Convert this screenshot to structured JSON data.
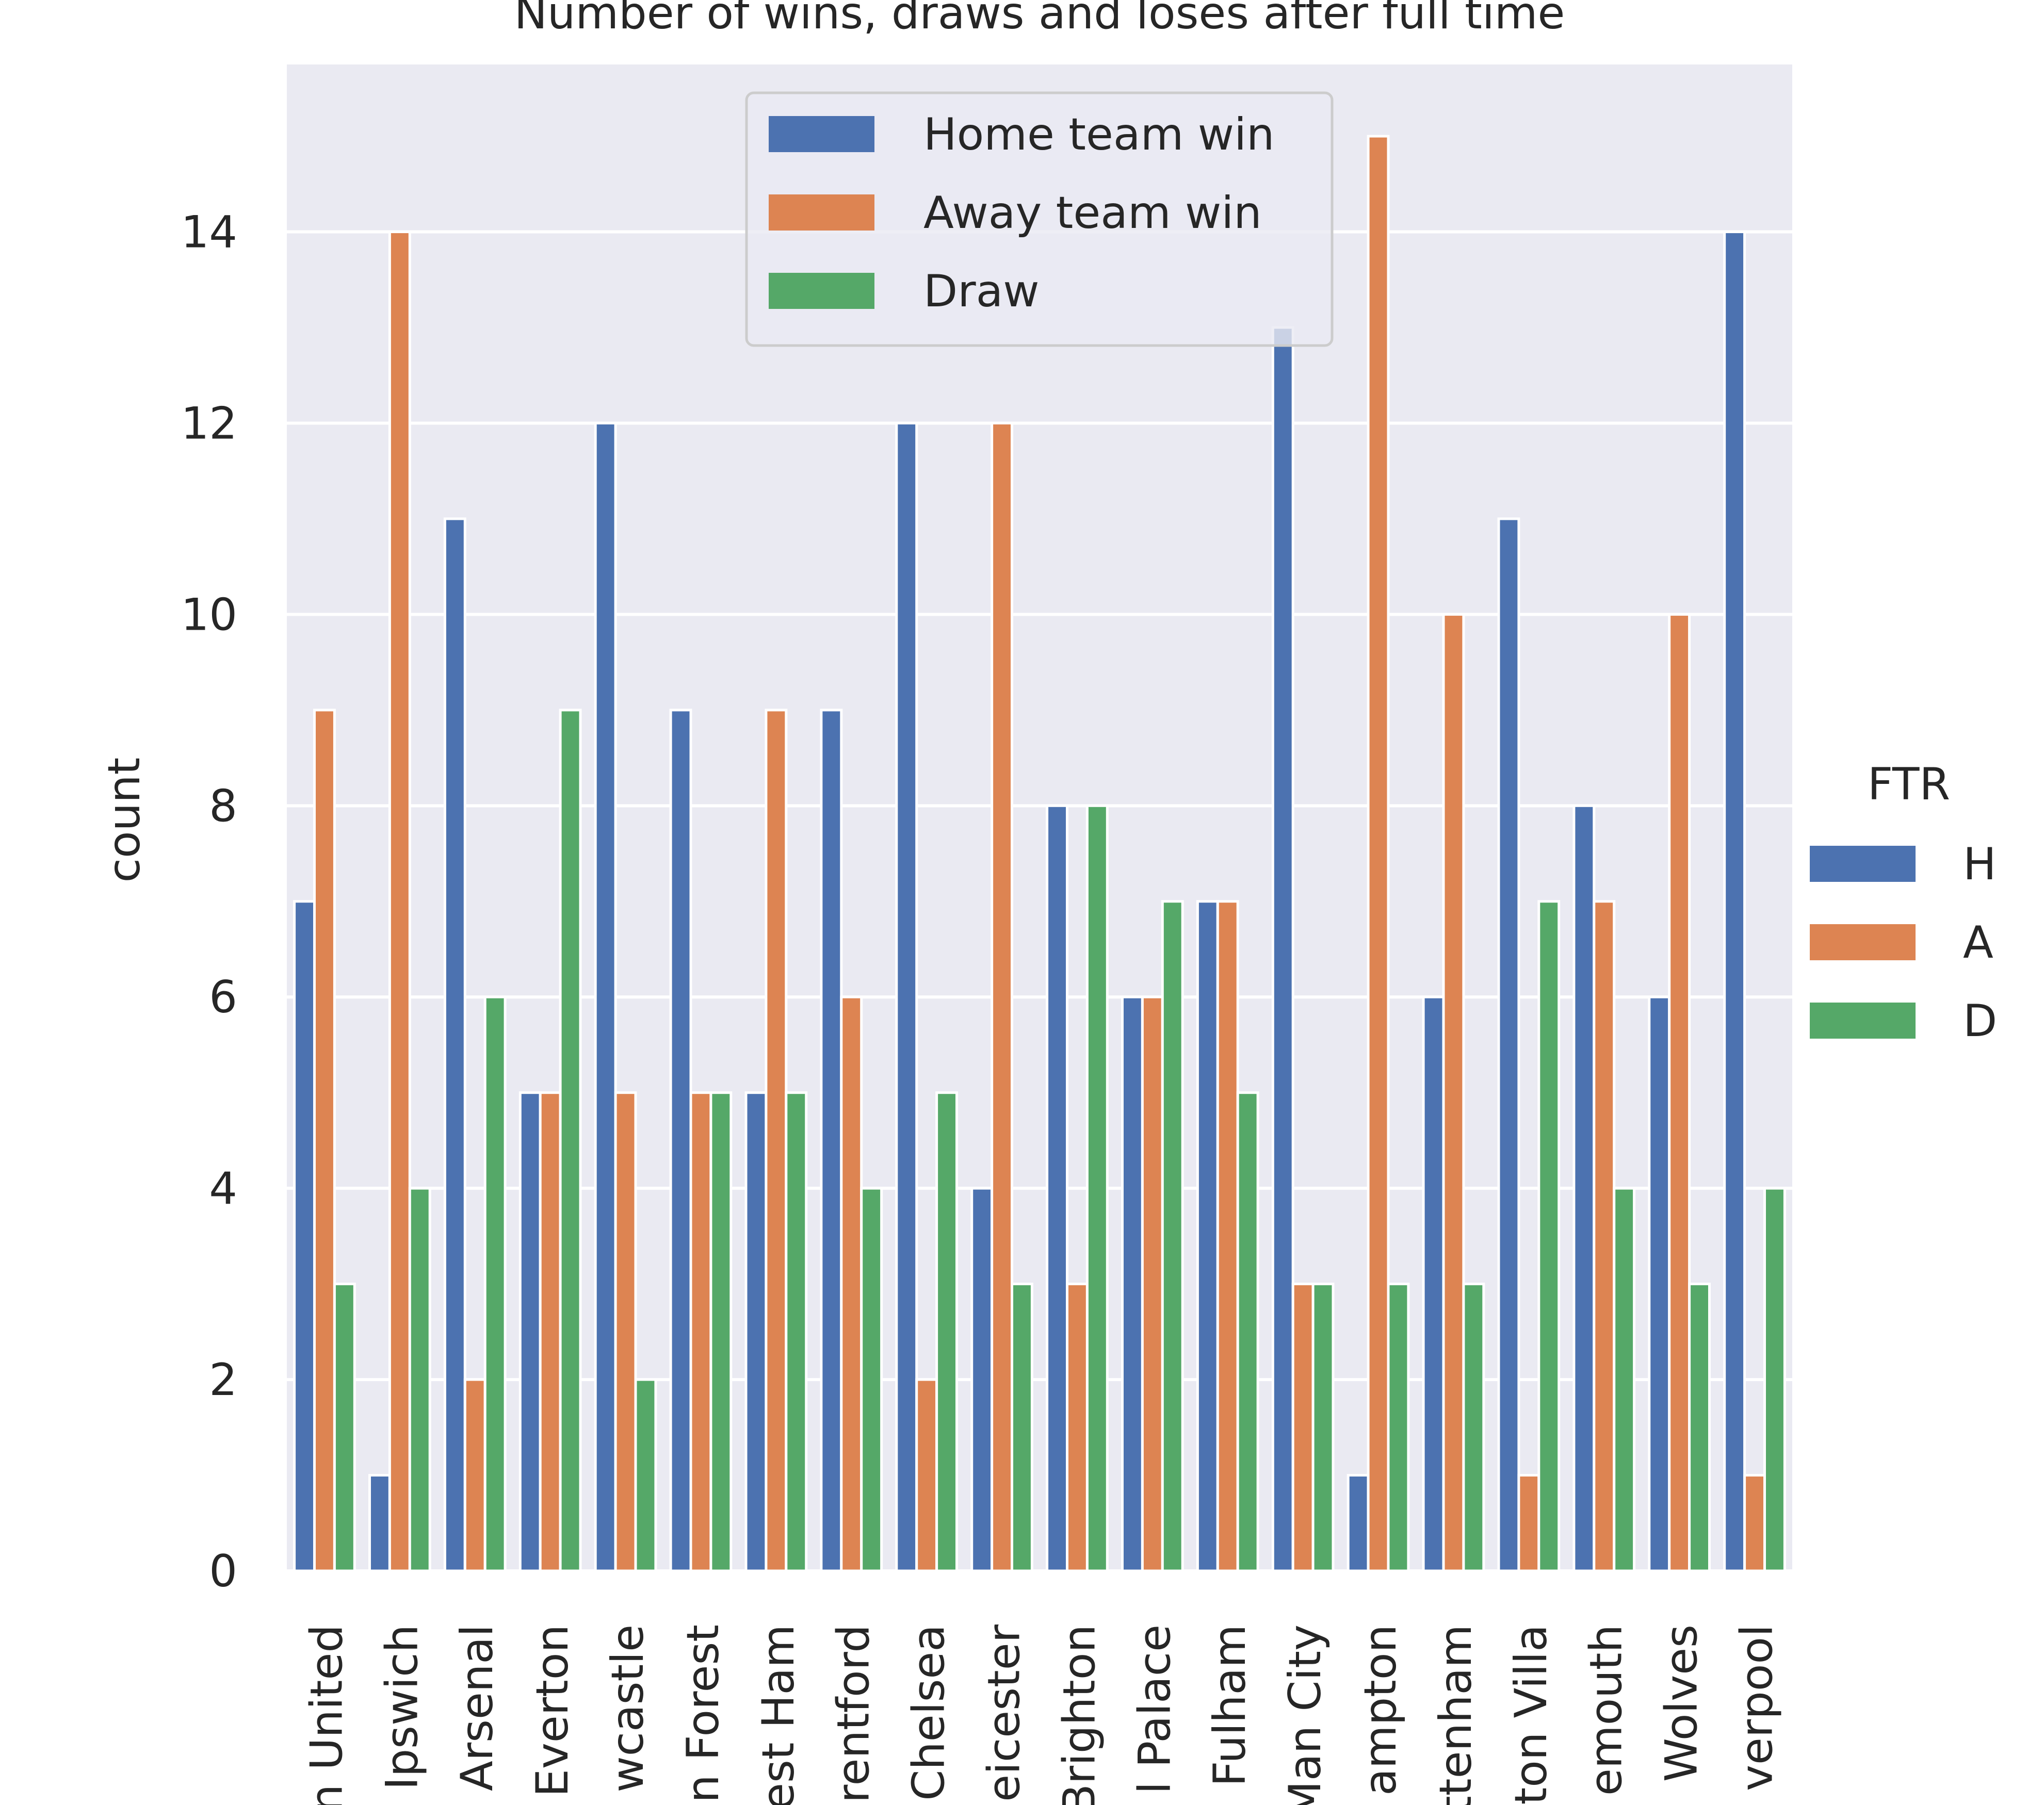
{
  "chart_data": {
    "type": "bar",
    "title": "Number of wins, draws and loses after full time",
    "xlabel": "",
    "ylabel": "count",
    "ylim": [
      0,
      15.75
    ],
    "yticks": [
      0,
      2,
      4,
      6,
      8,
      10,
      12,
      14
    ],
    "grid": true,
    "categories": [
      "n United",
      "Ipswich",
      "Arsenal",
      "Everton",
      "wcastle",
      "n Forest",
      "est Ham",
      "rentford",
      "Chelsea",
      "eicester",
      "Brighton",
      "l Palace",
      "Fulham",
      "Man City",
      "ampton",
      "ttenham",
      "ton Villa",
      "emouth",
      "Wolves",
      "verpool"
    ],
    "series": [
      {
        "name": "Home team win",
        "color": "#4c72b0",
        "values": [
          7,
          1,
          11,
          5,
          12,
          9,
          5,
          9,
          12,
          4,
          8,
          6,
          7,
          13,
          1,
          6,
          11,
          8,
          6,
          14
        ]
      },
      {
        "name": "Away team win",
        "color": "#dd8452",
        "values": [
          9,
          14,
          2,
          5,
          5,
          5,
          9,
          6,
          2,
          12,
          3,
          6,
          7,
          3,
          15,
          10,
          1,
          7,
          10,
          1
        ]
      },
      {
        "name": "Draw",
        "color": "#55a868",
        "values": [
          3,
          4,
          6,
          9,
          2,
          5,
          5,
          4,
          5,
          3,
          8,
          7,
          5,
          3,
          3,
          3,
          7,
          4,
          3,
          4
        ]
      }
    ],
    "legend": {
      "placement": "upper-center",
      "entries": [
        {
          "label": "Home team win",
          "color": "#4c72b0"
        },
        {
          "label": "Away team win",
          "color": "#dd8452"
        },
        {
          "label": "Draw",
          "color": "#55a868"
        }
      ]
    },
    "hue_legend": {
      "placement": "right",
      "title": "FTR",
      "entries": [
        {
          "label": "H",
          "color": "#4c72b0"
        },
        {
          "label": "A",
          "color": "#dd8452"
        },
        {
          "label": "D",
          "color": "#55a868"
        }
      ]
    }
  }
}
